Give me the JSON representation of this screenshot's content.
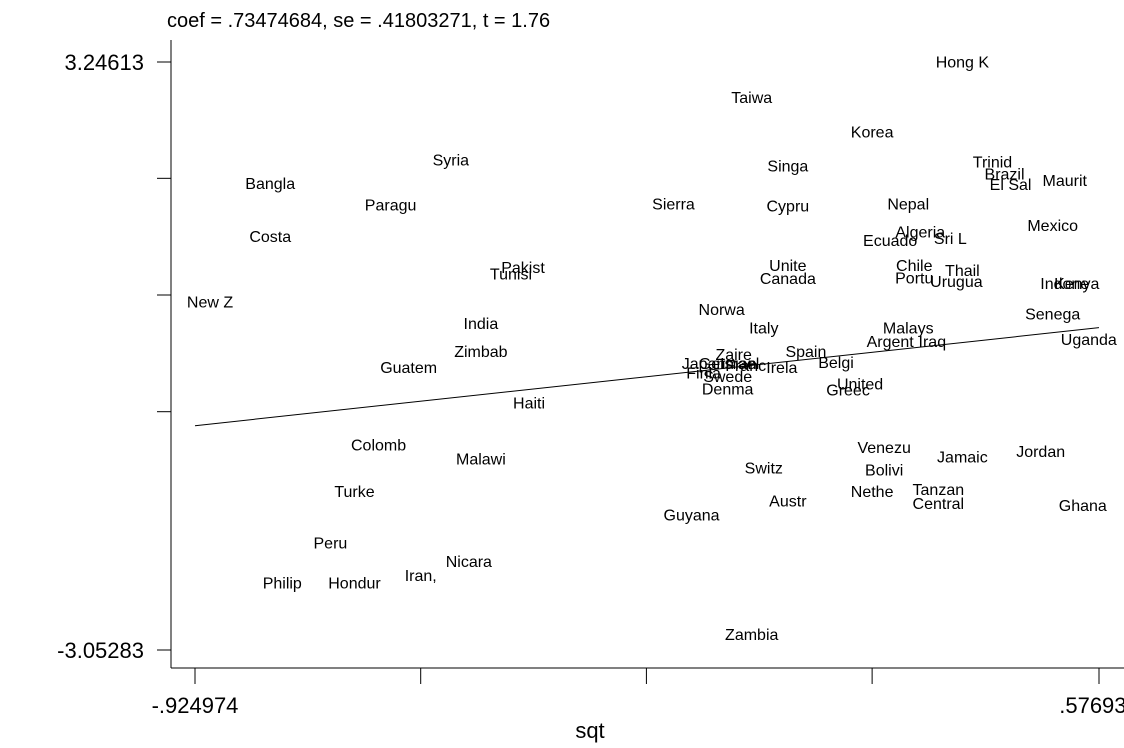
{
  "chart_data": {
    "type": "scatter",
    "title": "coef = .73474684, se = .41803271, t = 1.76",
    "xlabel": "sqt",
    "ylabel": "",
    "xlim": [
      -0.924974,
      0.576938
    ],
    "ylim": [
      -3.05283,
      3.24613
    ],
    "x_tick_labels": [
      {
        "value": -0.924974,
        "label": "-.924974"
      },
      {
        "value": 0.576938,
        "label": ".576938"
      }
    ],
    "y_tick_labels": [
      {
        "value": 3.24613,
        "label": "3.24613"
      },
      {
        "value": -3.05283,
        "label": "-3.05283"
      }
    ],
    "x_minor_ticks": [
      -0.55,
      -0.175,
      0.2
    ],
    "y_minor_ticks": [
      2.0,
      0.75,
      -0.5
    ],
    "fit_line": {
      "x": [
        -0.924974,
        0.576938
      ],
      "y": [
        -0.65,
        0.4
      ]
    },
    "points": [
      {
        "label": "Hong K",
        "x": 0.35,
        "y": 3.25
      },
      {
        "label": "Taiwa",
        "x": 0.0,
        "y": 2.87
      },
      {
        "label": "Korea",
        "x": 0.2,
        "y": 2.5
      },
      {
        "label": "Syria",
        "x": -0.5,
        "y": 2.2
      },
      {
        "label": "Singa",
        "x": 0.06,
        "y": 2.14
      },
      {
        "label": "Trinid",
        "x": 0.4,
        "y": 2.18
      },
      {
        "label": "Brazil",
        "x": 0.42,
        "y": 2.05
      },
      {
        "label": "Maurit",
        "x": 0.52,
        "y": 1.98
      },
      {
        "label": "El Sal",
        "x": 0.43,
        "y": 1.94
      },
      {
        "label": "Bangla",
        "x": -0.8,
        "y": 1.95
      },
      {
        "label": "Paragu",
        "x": -0.6,
        "y": 1.72
      },
      {
        "label": "Sierra",
        "x": -0.13,
        "y": 1.73
      },
      {
        "label": "Cypru",
        "x": 0.06,
        "y": 1.71
      },
      {
        "label": "Nepal",
        "x": 0.26,
        "y": 1.73
      },
      {
        "label": "Mexico",
        "x": 0.5,
        "y": 1.5
      },
      {
        "label": "Algeria",
        "x": 0.28,
        "y": 1.43
      },
      {
        "label": "Costa",
        "x": -0.8,
        "y": 1.38
      },
      {
        "label": "Ecuado",
        "x": 0.23,
        "y": 1.34
      },
      {
        "label": "Sri L",
        "x": 0.33,
        "y": 1.36
      },
      {
        "label": "Unite",
        "x": 0.06,
        "y": 1.07
      },
      {
        "label": "Chile",
        "x": 0.27,
        "y": 1.07
      },
      {
        "label": "Thail",
        "x": 0.35,
        "y": 1.02
      },
      {
        "label": "Pakist",
        "x": -0.38,
        "y": 1.05
      },
      {
        "label": "Tunisi",
        "x": -0.4,
        "y": 0.98
      },
      {
        "label": "Canada",
        "x": 0.06,
        "y": 0.93
      },
      {
        "label": "Portu",
        "x": 0.27,
        "y": 0.94
      },
      {
        "label": "Urugua",
        "x": 0.34,
        "y": 0.9
      },
      {
        "label": "Indone",
        "x": 0.52,
        "y": 0.88
      },
      {
        "label": "Kenya",
        "x": 0.54,
        "y": 0.88
      },
      {
        "label": "New Z",
        "x": -0.9,
        "y": 0.68
      },
      {
        "label": "Norwa",
        "x": -0.05,
        "y": 0.6
      },
      {
        "label": "Senega",
        "x": 0.5,
        "y": 0.55
      },
      {
        "label": "India",
        "x": -0.45,
        "y": 0.45
      },
      {
        "label": "Italy",
        "x": 0.02,
        "y": 0.4
      },
      {
        "label": "Malays",
        "x": 0.26,
        "y": 0.4
      },
      {
        "label": "Uganda",
        "x": 0.56,
        "y": 0.28
      },
      {
        "label": "Argent",
        "x": 0.23,
        "y": 0.26
      },
      {
        "label": "Iraq",
        "x": 0.3,
        "y": 0.26
      },
      {
        "label": "Zimbab",
        "x": -0.45,
        "y": 0.15
      },
      {
        "label": "Spain",
        "x": 0.09,
        "y": 0.15
      },
      {
        "label": "Zaire",
        "x": -0.03,
        "y": 0.12
      },
      {
        "label": "Japan",
        "x": -0.08,
        "y": 0.02
      },
      {
        "label": "German",
        "x": -0.04,
        "y": 0.02
      },
      {
        "label": "Israel",
        "x": -0.02,
        "y": 0.02
      },
      {
        "label": "Franc",
        "x": -0.01,
        "y": 0.0
      },
      {
        "label": "Belgi",
        "x": 0.14,
        "y": 0.03
      },
      {
        "label": "Irela",
        "x": 0.05,
        "y": -0.02
      },
      {
        "label": "Guatem",
        "x": -0.57,
        "y": -0.02
      },
      {
        "label": "Finla",
        "x": -0.08,
        "y": -0.08
      },
      {
        "label": "Swede",
        "x": -0.04,
        "y": -0.12
      },
      {
        "label": "Denma",
        "x": -0.04,
        "y": -0.25
      },
      {
        "label": "United",
        "x": 0.18,
        "y": -0.2
      },
      {
        "label": "Greec",
        "x": 0.16,
        "y": -0.26
      },
      {
        "label": "Haiti",
        "x": -0.37,
        "y": -0.4
      },
      {
        "label": "Colomb",
        "x": -0.62,
        "y": -0.85
      },
      {
        "label": "Venezu",
        "x": 0.22,
        "y": -0.88
      },
      {
        "label": "Jamaic",
        "x": 0.35,
        "y": -0.98
      },
      {
        "label": "Jordan",
        "x": 0.48,
        "y": -0.92
      },
      {
        "label": "Malawi",
        "x": -0.45,
        "y": -1.0
      },
      {
        "label": "Switz",
        "x": 0.02,
        "y": -1.1
      },
      {
        "label": "Bolivi",
        "x": 0.22,
        "y": -1.12
      },
      {
        "label": "Turke",
        "x": -0.66,
        "y": -1.35
      },
      {
        "label": "Nethe",
        "x": 0.2,
        "y": -1.35
      },
      {
        "label": "Tanzan",
        "x": 0.31,
        "y": -1.33
      },
      {
        "label": "Austr",
        "x": 0.06,
        "y": -1.45
      },
      {
        "label": "Central",
        "x": 0.31,
        "y": -1.48
      },
      {
        "label": "Ghana",
        "x": 0.55,
        "y": -1.5
      },
      {
        "label": "Guyana",
        "x": -0.1,
        "y": -1.6
      },
      {
        "label": "Peru",
        "x": -0.7,
        "y": -1.9
      },
      {
        "label": "Nicara",
        "x": -0.47,
        "y": -2.1
      },
      {
        "label": "Iran,",
        "x": -0.55,
        "y": -2.25
      },
      {
        "label": "Philip",
        "x": -0.78,
        "y": -2.33
      },
      {
        "label": "Hondur",
        "x": -0.66,
        "y": -2.33
      },
      {
        "label": "Zambia",
        "x": 0.0,
        "y": -2.88
      }
    ]
  }
}
